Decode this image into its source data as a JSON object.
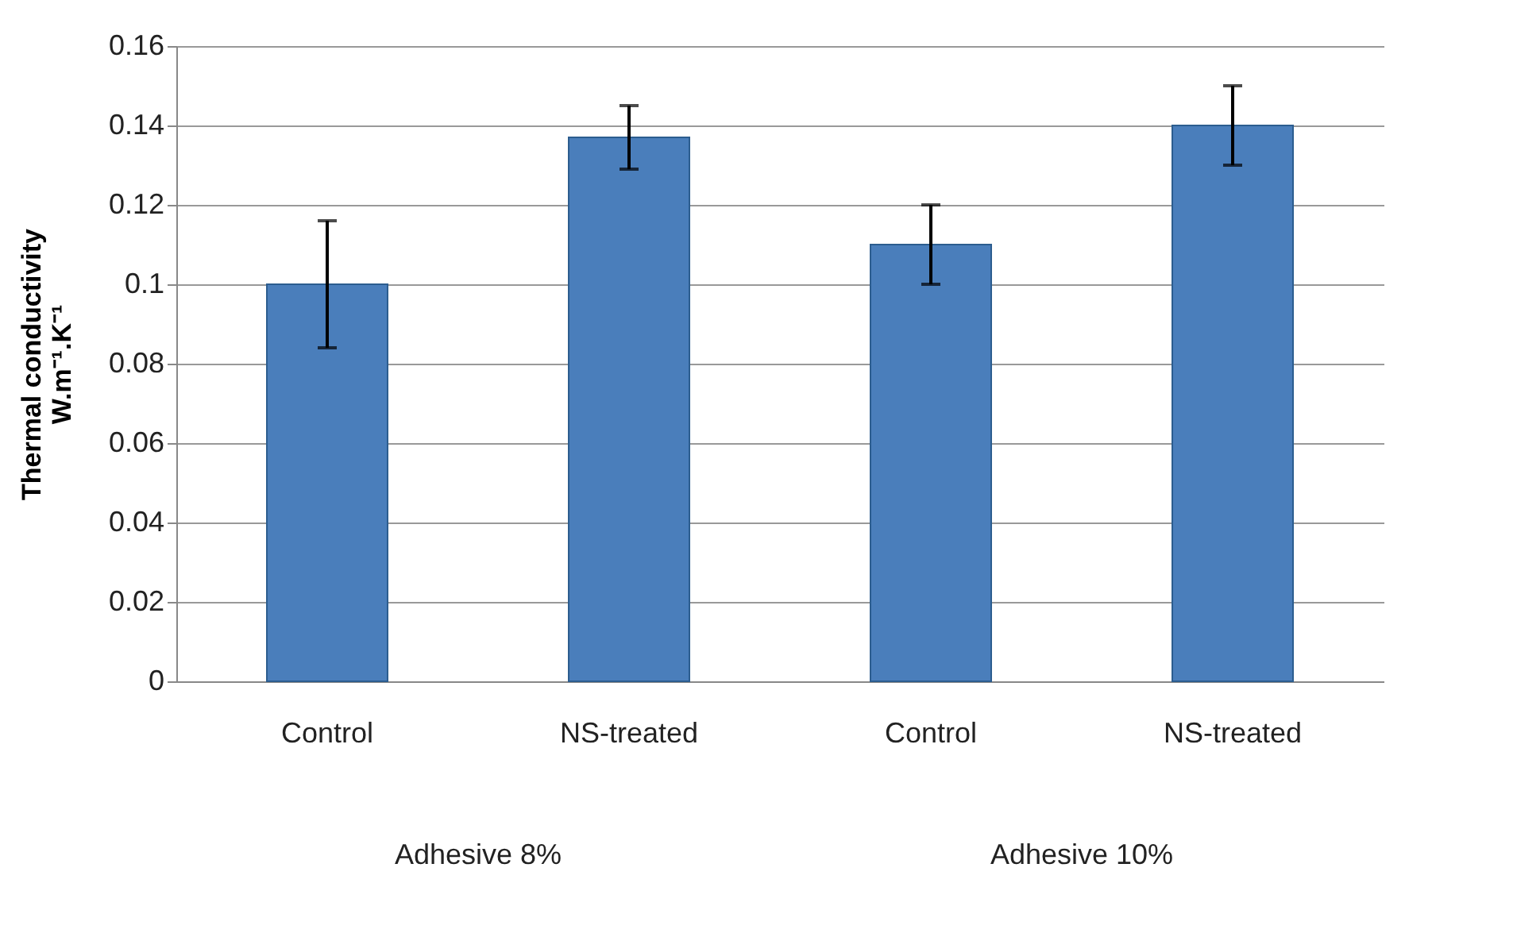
{
  "chart_data": {
    "type": "bar",
    "ylabel": "Thermal conductivity\nW.m⁻¹.K⁻¹",
    "categories": [
      "Control",
      "NS-treated",
      "Control",
      "NS-treated"
    ],
    "values": [
      0.1,
      0.137,
      0.11,
      0.14
    ],
    "errors": [
      [
        0.084,
        0.116
      ],
      [
        0.129,
        0.145
      ],
      [
        0.1,
        0.12
      ],
      [
        0.13,
        0.15
      ]
    ],
    "color": "#4a7ebb",
    "ylim": [
      0,
      0.16
    ],
    "yticks": [
      0,
      0.02,
      0.04,
      0.06,
      0.08,
      {
        "value": 0.1,
        "label": "0.1"
      },
      0.12,
      0.14,
      0.16
    ],
    "grid": "y",
    "annotations": [
      "Adhesive 8%",
      "Adhesive 10%"
    ]
  }
}
